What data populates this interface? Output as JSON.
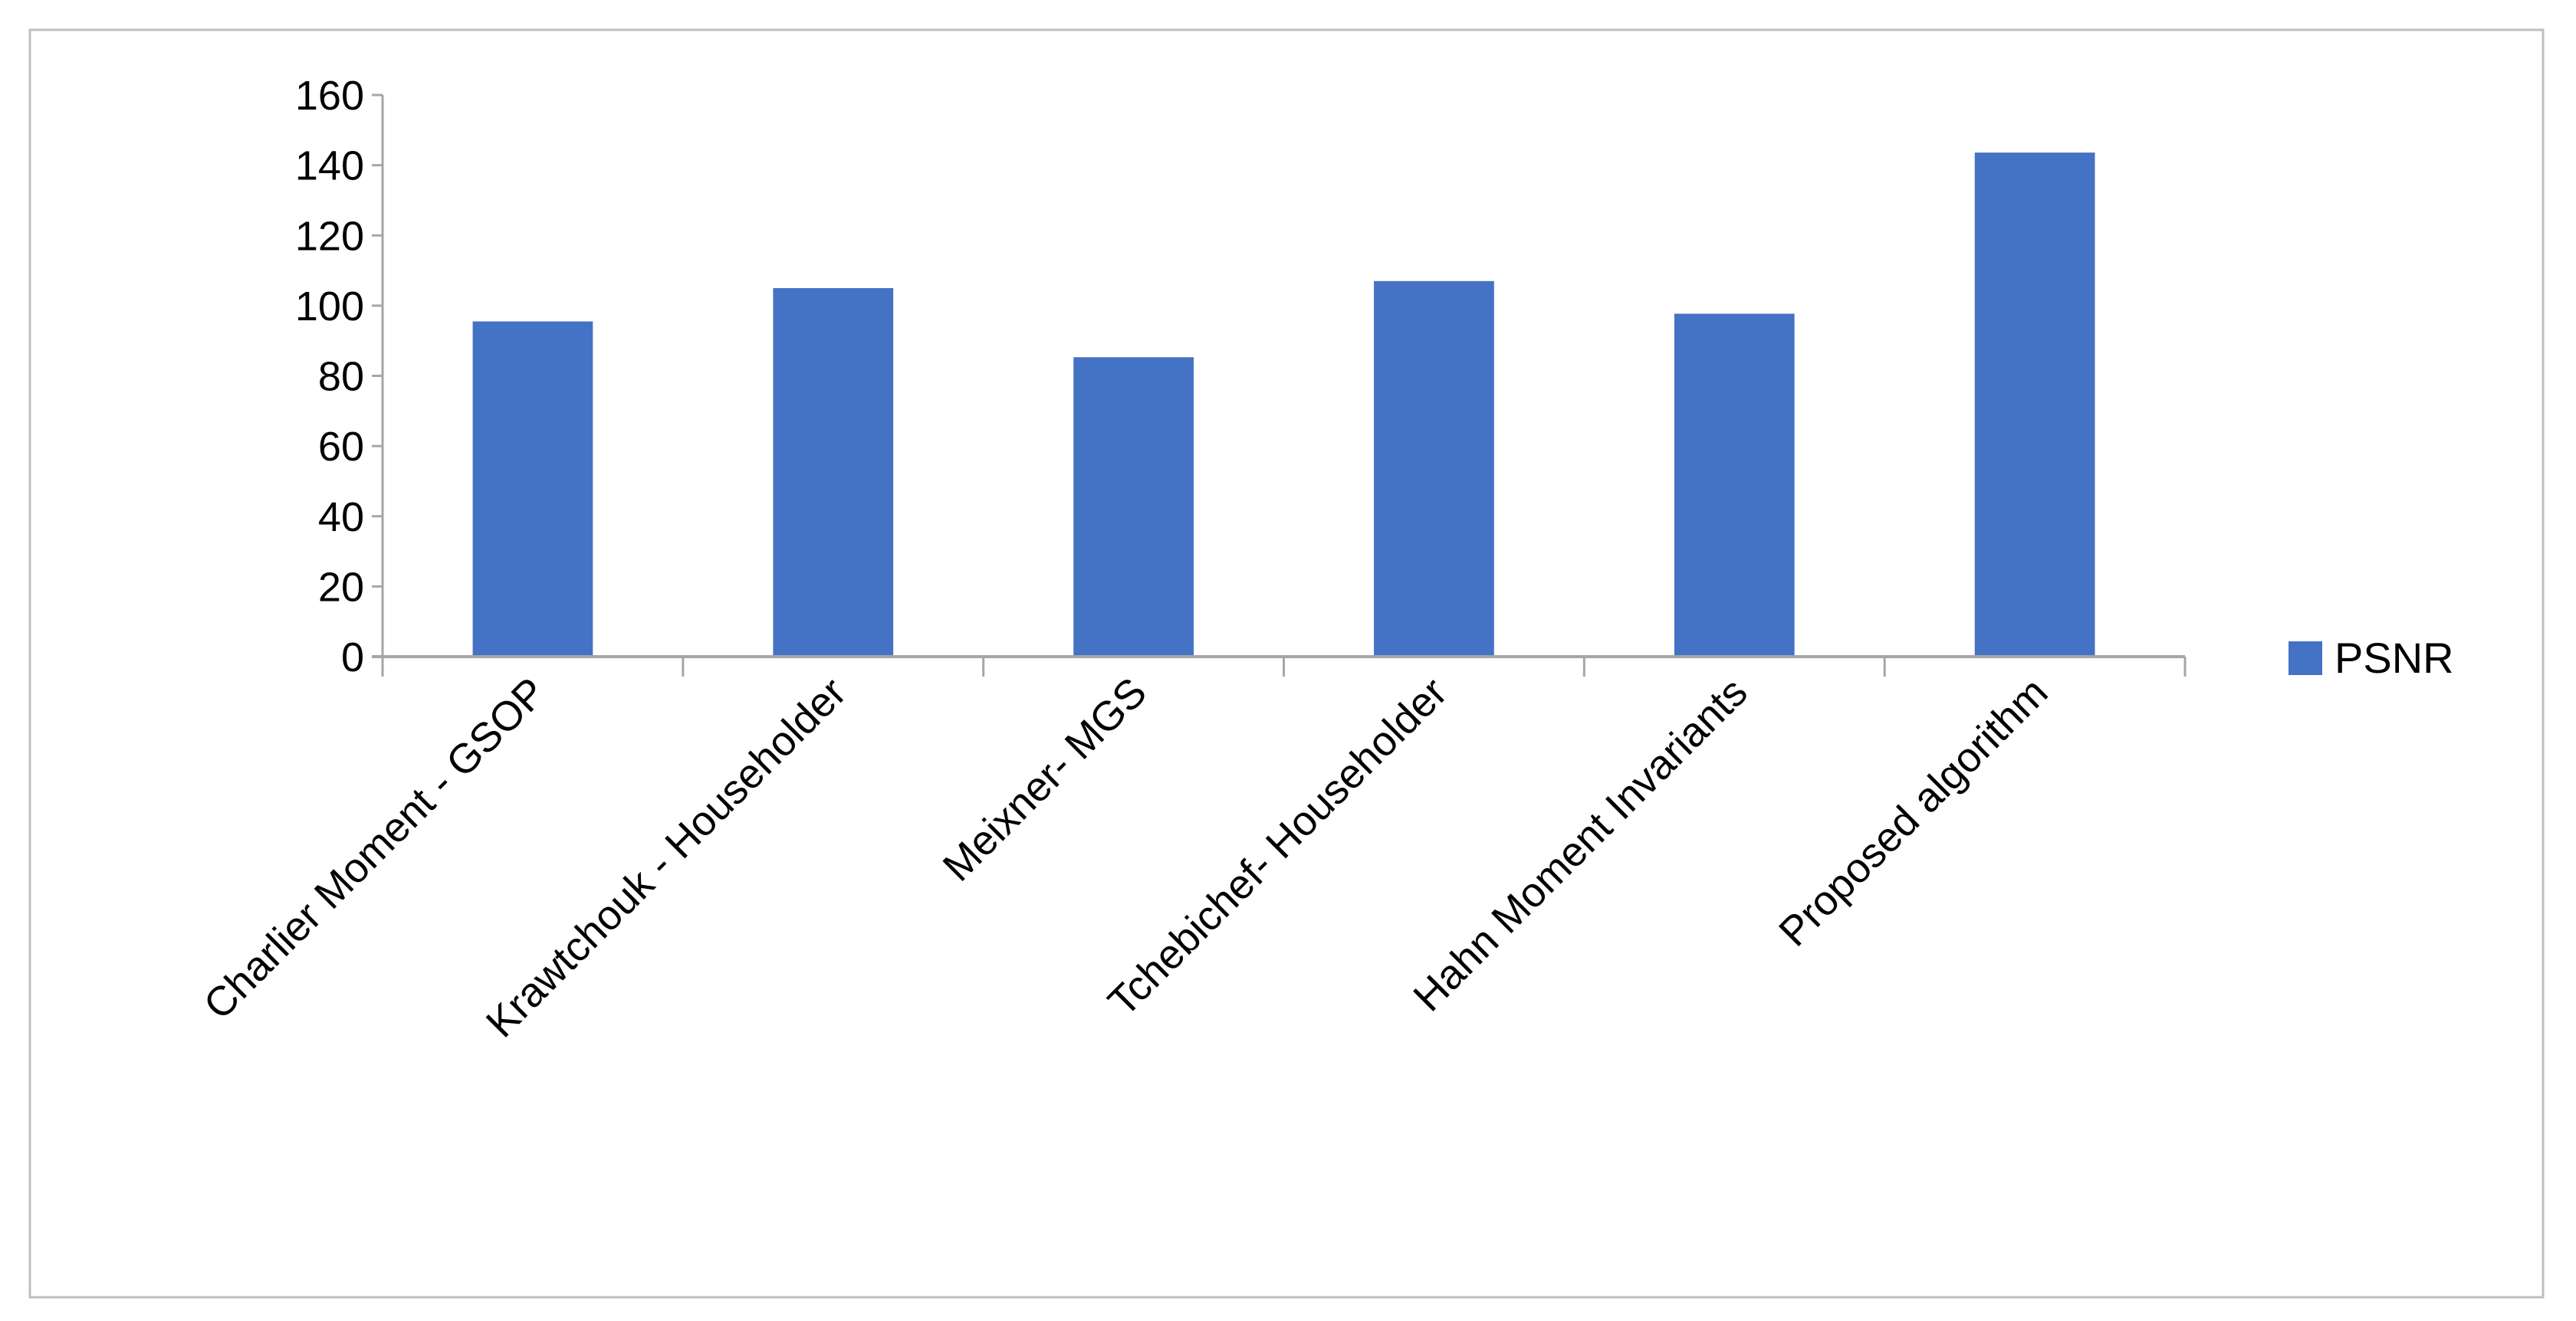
{
  "chart_data": {
    "type": "bar",
    "title": "",
    "xlabel": "",
    "ylabel": "",
    "categories": [
      "Charlier Moment - GSOP",
      "Krawtchouk - Householder",
      "Meixner- MGS",
      "Tchebichef- Householder",
      "Hahn Moment Invariants",
      "Proposed algorithm"
    ],
    "series": [
      {
        "name": "PSNR",
        "values": [
          95.5,
          105,
          85.3,
          107,
          97.7,
          143.6
        ],
        "color": "#4472C4"
      }
    ],
    "ylim": [
      0,
      160
    ],
    "yticks": [
      0,
      20,
      40,
      60,
      80,
      100,
      120,
      140,
      160
    ],
    "grid": false,
    "legend": "right"
  }
}
